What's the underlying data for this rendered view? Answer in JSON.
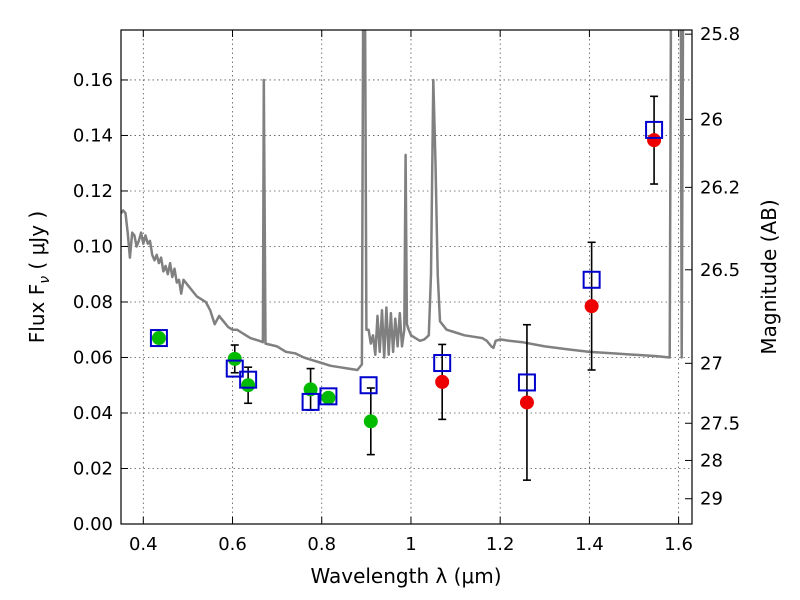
{
  "chart_data": {
    "type": "scatter",
    "title": "",
    "xlabel": "Wavelength  λ (μm)",
    "ylabel": "Flux  F",
    "ylabel_sub": "ν",
    "ylabel_unit": "  ( μJy )",
    "y2label": "Magnitude (AB)",
    "xlim": [
      0.35,
      1.63
    ],
    "ylim": [
      0.0,
      0.178
    ],
    "grid": true,
    "x_ticks": [
      0.4,
      0.6,
      0.8,
      1.0,
      1.2,
      1.4,
      1.6
    ],
    "x_tick_labels": [
      "0.4",
      "0.6",
      "0.8",
      "1",
      "1.2",
      "1.4",
      "1.6"
    ],
    "y_ticks": [
      0.0,
      0.02,
      0.04,
      0.06,
      0.08,
      0.1,
      0.12,
      0.14,
      0.16
    ],
    "y_tick_labels": [
      "0.00",
      "0.02",
      "0.04",
      "0.06",
      "0.08",
      "0.10",
      "0.12",
      "0.14",
      "0.16"
    ],
    "y2_ticks": [
      {
        "label": "25.8",
        "flux": 0.1765
      },
      {
        "label": "26",
        "flux": 0.1458
      },
      {
        "label": "26.2",
        "flux": 0.1213
      },
      {
        "label": "26.5",
        "flux": 0.0916
      },
      {
        "label": "27",
        "flux": 0.0579
      },
      {
        "label": "27.5",
        "flux": 0.0363
      },
      {
        "label": "28",
        "flux": 0.0229
      },
      {
        "label": "29",
        "flux": 0.0091
      }
    ],
    "colors": {
      "model": "#808080",
      "squares": "#0000cc",
      "green": "#00bb00",
      "red": "#ee0000",
      "errorbar": "#000000",
      "grid": "#555555"
    },
    "series": [
      {
        "marker": "open-square",
        "points": [
          {
            "x": 0.435,
            "y": 0.067
          },
          {
            "x": 0.605,
            "y": 0.056
          },
          {
            "x": 0.635,
            "y": 0.052
          },
          {
            "x": 0.775,
            "y": 0.044
          },
          {
            "x": 0.815,
            "y": 0.046
          },
          {
            "x": 0.905,
            "y": 0.05
          },
          {
            "x": 1.07,
            "y": 0.058
          },
          {
            "x": 1.26,
            "y": 0.051
          },
          {
            "x": 1.405,
            "y": 0.088
          },
          {
            "x": 1.545,
            "y": 0.142
          }
        ]
      },
      {
        "marker": "filled-circle-green",
        "points": [
          {
            "x": 0.435,
            "y": 0.067
          },
          {
            "x": 0.605,
            "y": 0.0595,
            "err": 0.005
          },
          {
            "x": 0.635,
            "y": 0.05,
            "err": 0.0065
          },
          {
            "x": 0.775,
            "y": 0.0485,
            "err": 0.0075
          },
          {
            "x": 0.815,
            "y": 0.0455
          },
          {
            "x": 0.91,
            "y": 0.037,
            "err": 0.012
          }
        ]
      },
      {
        "marker": "filled-circle-red",
        "points": [
          {
            "x": 1.07,
            "y": 0.0512,
            "err": 0.0135
          },
          {
            "x": 1.26,
            "y": 0.0438,
            "err": 0.028
          },
          {
            "x": 1.405,
            "y": 0.0785,
            "err": 0.023
          },
          {
            "x": 1.545,
            "y": 0.1383,
            "err": 0.0158
          }
        ]
      }
    ],
    "model_spectrum": [
      [
        0.35,
        0.112
      ],
      [
        0.355,
        0.113
      ],
      [
        0.36,
        0.112
      ],
      [
        0.365,
        0.105
      ],
      [
        0.37,
        0.096
      ],
      [
        0.375,
        0.105
      ],
      [
        0.38,
        0.104
      ],
      [
        0.385,
        0.1
      ],
      [
        0.39,
        0.102
      ],
      [
        0.395,
        0.105
      ],
      [
        0.4,
        0.101
      ],
      [
        0.405,
        0.104
      ],
      [
        0.41,
        0.101
      ],
      [
        0.415,
        0.102
      ],
      [
        0.42,
        0.097
      ],
      [
        0.425,
        0.095
      ],
      [
        0.43,
        0.097
      ],
      [
        0.435,
        0.094
      ],
      [
        0.44,
        0.096
      ],
      [
        0.445,
        0.091
      ],
      [
        0.45,
        0.093
      ],
      [
        0.455,
        0.09
      ],
      [
        0.46,
        0.094
      ],
      [
        0.465,
        0.089
      ],
      [
        0.47,
        0.092
      ],
      [
        0.475,
        0.087
      ],
      [
        0.48,
        0.088
      ],
      [
        0.485,
        0.083
      ],
      [
        0.49,
        0.088
      ],
      [
        0.5,
        0.086
      ],
      [
        0.51,
        0.084
      ],
      [
        0.52,
        0.082
      ],
      [
        0.53,
        0.081
      ],
      [
        0.54,
        0.08
      ],
      [
        0.55,
        0.077
      ],
      [
        0.56,
        0.072
      ],
      [
        0.57,
        0.075
      ],
      [
        0.58,
        0.073
      ],
      [
        0.59,
        0.071
      ],
      [
        0.6,
        0.07
      ],
      [
        0.61,
        0.07
      ],
      [
        0.62,
        0.069
      ],
      [
        0.63,
        0.068
      ],
      [
        0.64,
        0.067
      ],
      [
        0.65,
        0.0665
      ],
      [
        0.66,
        0.066
      ],
      [
        0.668,
        0.0655
      ],
      [
        0.67,
        0.16
      ],
      [
        0.674,
        0.065
      ],
      [
        0.7,
        0.064
      ],
      [
        0.72,
        0.062
      ],
      [
        0.74,
        0.0615
      ],
      [
        0.76,
        0.06
      ],
      [
        0.78,
        0.059
      ],
      [
        0.8,
        0.058
      ],
      [
        0.82,
        0.057
      ],
      [
        0.84,
        0.0565
      ],
      [
        0.86,
        0.056
      ],
      [
        0.88,
        0.0555
      ],
      [
        0.89,
        0.0575
      ],
      [
        0.893,
        0.19
      ],
      [
        0.897,
        0.19
      ],
      [
        0.9,
        0.07
      ],
      [
        0.905,
        0.07
      ],
      [
        0.91,
        0.065
      ],
      [
        0.915,
        0.068
      ],
      [
        0.92,
        0.061
      ],
      [
        0.925,
        0.075
      ],
      [
        0.93,
        0.062
      ],
      [
        0.935,
        0.077
      ],
      [
        0.94,
        0.06
      ],
      [
        0.945,
        0.078
      ],
      [
        0.95,
        0.061
      ],
      [
        0.955,
        0.076
      ],
      [
        0.96,
        0.062
      ],
      [
        0.965,
        0.074
      ],
      [
        0.97,
        0.064
      ],
      [
        0.975,
        0.076
      ],
      [
        0.98,
        0.064
      ],
      [
        0.985,
        0.07
      ],
      [
        0.988,
        0.133
      ],
      [
        0.991,
        0.072
      ],
      [
        0.995,
        0.07
      ],
      [
        1.0,
        0.068
      ],
      [
        1.01,
        0.067
      ],
      [
        1.02,
        0.066
      ],
      [
        1.03,
        0.0665
      ],
      [
        1.04,
        0.068
      ],
      [
        1.045,
        0.09
      ],
      [
        1.05,
        0.16
      ],
      [
        1.055,
        0.13
      ],
      [
        1.06,
        0.09
      ],
      [
        1.065,
        0.073
      ],
      [
        1.08,
        0.07
      ],
      [
        1.1,
        0.069
      ],
      [
        1.12,
        0.068
      ],
      [
        1.14,
        0.0675
      ],
      [
        1.16,
        0.067
      ],
      [
        1.17,
        0.066
      ],
      [
        1.18,
        0.064
      ],
      [
        1.185,
        0.0635
      ],
      [
        1.19,
        0.066
      ],
      [
        1.2,
        0.0665
      ],
      [
        1.22,
        0.066
      ],
      [
        1.25,
        0.0655
      ],
      [
        1.3,
        0.064
      ],
      [
        1.35,
        0.063
      ],
      [
        1.4,
        0.062
      ],
      [
        1.45,
        0.0615
      ],
      [
        1.5,
        0.061
      ],
      [
        1.55,
        0.0605
      ],
      [
        1.58,
        0.06
      ],
      [
        1.583,
        0.19
      ],
      [
        1.605,
        0.19
      ],
      [
        1.607,
        0.06
      ],
      [
        1.61,
        0.19
      ]
    ]
  }
}
